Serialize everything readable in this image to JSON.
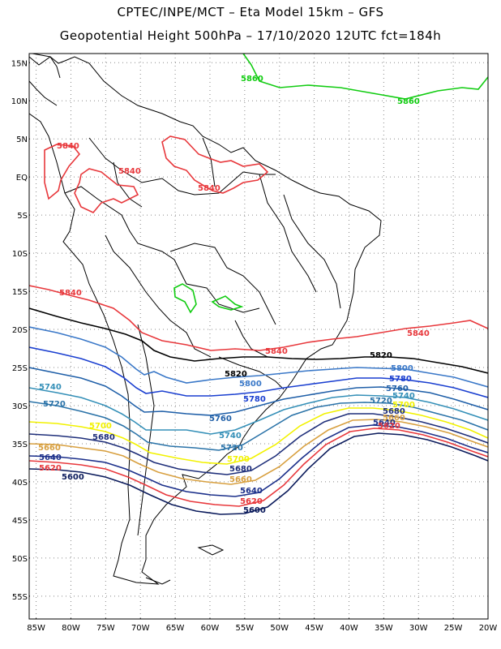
{
  "header": {
    "title_line1": "CPTEC/INPE/MCT –  Eta Model 15km – GFS",
    "title_line2": "Geopotential Height 500hPa – 17/10/2020 12UTC fct=184h"
  },
  "axes": {
    "lat_labels": [
      "15N",
      "10N",
      "5N",
      "EQ",
      "5S",
      "10S",
      "15S",
      "20S",
      "25S",
      "30S",
      "35S",
      "40S",
      "45S",
      "50S",
      "55S"
    ],
    "lon_labels": [
      "85W",
      "80W",
      "75W",
      "70W",
      "65W",
      "60W",
      "55W",
      "50W",
      "45W",
      "40W",
      "35W",
      "30W",
      "25W",
      "20W"
    ],
    "lat_values": [
      15,
      10,
      5,
      0,
      -5,
      -10,
      -15,
      -20,
      -25,
      -30,
      -35,
      -40,
      -45,
      -50,
      -55
    ],
    "lon_values": [
      -85,
      -80,
      -75,
      -70,
      -65,
      -60,
      -55,
      -50,
      -45,
      -40,
      -35,
      -30,
      -25,
      -20
    ]
  },
  "colors": {
    "c5600": "#0b1b5c",
    "c5620": "#e8383c",
    "c5640": "#1b2f8a",
    "c5660": "#d8a040",
    "c5680": "#1f2f7a",
    "c5700": "#f2f200",
    "c5720": "#2b73a8",
    "c5740": "#3590b8",
    "c5760": "#1f5fa8",
    "c5780": "#1a3fd0",
    "c5800": "#3a78c8",
    "c5820": "#000000",
    "c5840": "#e8383c",
    "c5860": "#11cc11",
    "coast": "#000000",
    "grid": "#888888"
  },
  "contours": {
    "labels": {
      "l5860a": "5860",
      "l5860b": "5860",
      "l5840a": "5840",
      "l5840b": "5840",
      "l5840c": "5840",
      "l5840d": "5840",
      "l5840e": "5840",
      "l5840f": "5840",
      "l5820a": "5820",
      "l5820b": "5820",
      "l5800a": "5800",
      "l5800b": "5800",
      "l5780a": "5780",
      "l5780b": "5780",
      "l5760a": "5760",
      "l5760b": "5760",
      "l5740a": "5740",
      "l5740b": "5740",
      "l5740c": "5740",
      "l5720a": "5720",
      "l5720b": "5720",
      "l5720c": "5720",
      "l5700a": "5700",
      "l5700b": "5700",
      "l5700c": "5700",
      "l5680a": "5680",
      "l5680b": "5680",
      "l5680c": "5680",
      "l5660a": "5660",
      "l5660b": "5660",
      "l5660c": "5660",
      "l5640a": "5640",
      "l5640b": "5640",
      "l5640c": "5640",
      "l5620a": "5620",
      "l5620b": "5620",
      "l5620c": "5620",
      "l5600a": "5600",
      "l5600b": "5600"
    }
  }
}
